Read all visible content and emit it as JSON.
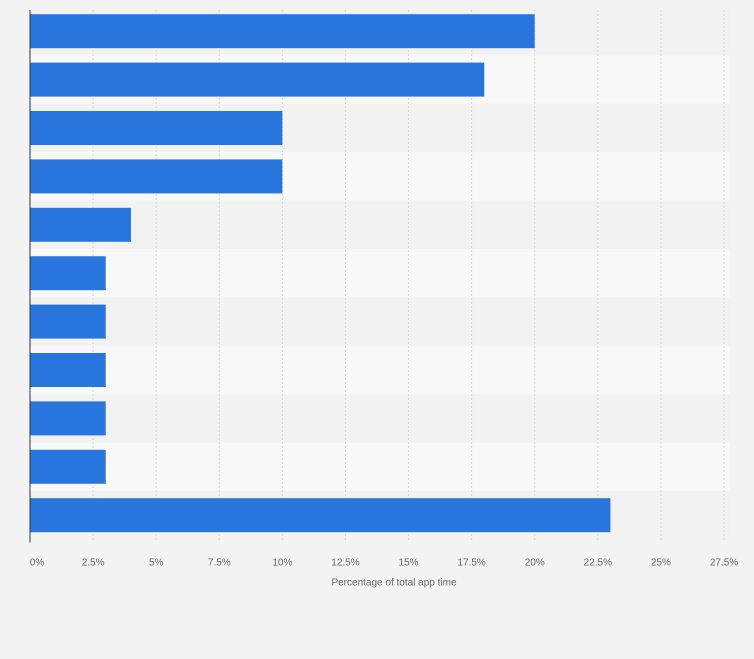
{
  "chart_data": {
    "type": "bar",
    "orientation": "horizontal",
    "categories": [
      "",
      "",
      "",
      "",
      "",
      "",
      "",
      "",
      "",
      "",
      ""
    ],
    "values": [
      20,
      18,
      10,
      10,
      4,
      3,
      3,
      3,
      3,
      3,
      23
    ],
    "xlabel": "Percentage of total app time",
    "ylabel": "",
    "xlim": [
      0,
      27.5
    ],
    "tick_labels": [
      "0%",
      "2.5%",
      "5%",
      "7.5%",
      "10%",
      "12.5%",
      "15%",
      "17.5%",
      "20%",
      "22.5%",
      "25%",
      "27.5%"
    ],
    "grid": true,
    "legend": "none",
    "colors": {
      "bar": "#2876dd",
      "band_dark": "#f2f2f2",
      "band_light": "#f8f8f8",
      "grid": "#d7d7d7",
      "axis": "#333333",
      "text": "#666666",
      "background": "#f3f3f3"
    }
  }
}
